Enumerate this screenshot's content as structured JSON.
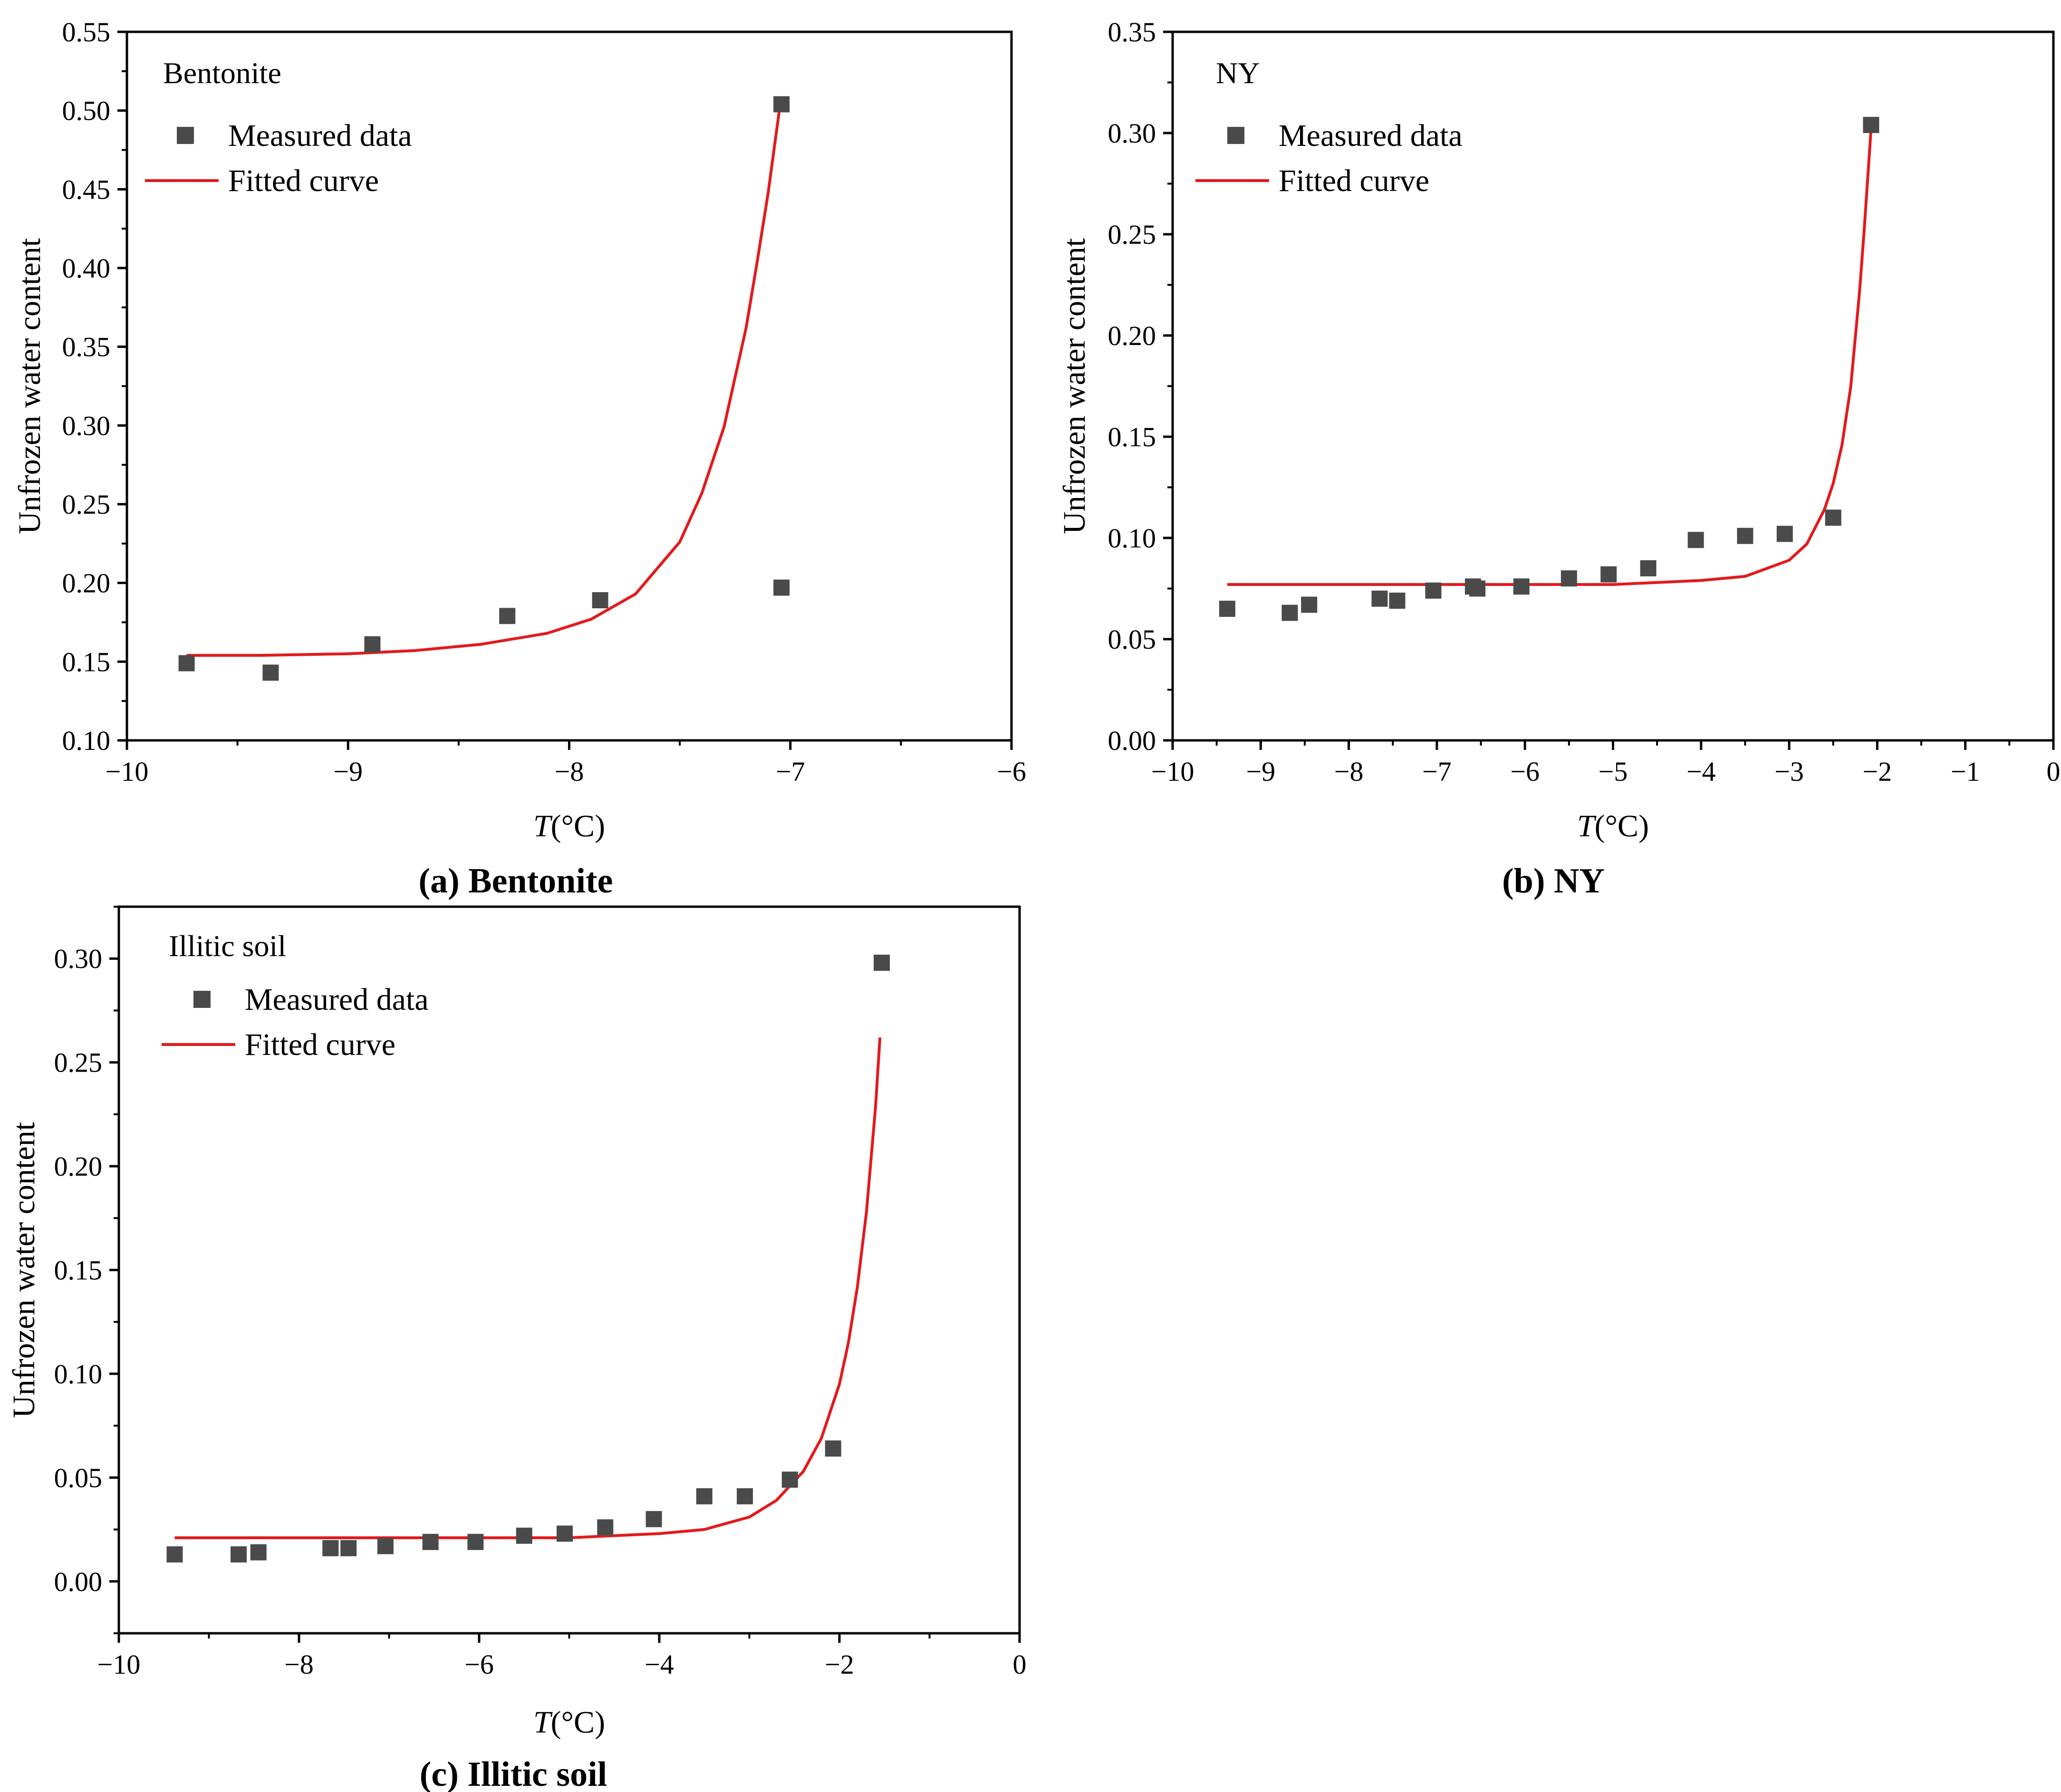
{
  "colors": {
    "marker": "#4a4a4a",
    "curve": "#e31a1c",
    "axis": "#000000"
  },
  "chart_data": [
    {
      "type": "scatter",
      "caption": {
        "letter": "(a) ",
        "name": "Bentonite"
      },
      "sample_label": "Bentonite",
      "legend": {
        "measured": "Measured data",
        "fitted": "Fitted curve"
      },
      "xlabel_var": "T",
      "xlabel_unit": "(°C)",
      "ylabel": "Unfrozen water content",
      "xlim": [
        -10,
        -6
      ],
      "ylim": [
        0.1,
        0.55
      ],
      "xticks": [
        -10,
        -9,
        -8,
        -7,
        -6
      ],
      "xtick_labels": [
        "−10",
        "−9",
        "−8",
        "−7",
        "−6"
      ],
      "yticks": [
        0.1,
        0.15,
        0.2,
        0.25,
        0.3,
        0.35,
        0.4,
        0.45,
        0.5,
        0.55
      ],
      "ytick_labels": [
        "0.10",
        "0.15",
        "0.20",
        "0.25",
        "0.30",
        "0.35",
        "0.40",
        "0.45",
        "0.50",
        "0.55"
      ],
      "measured": {
        "x": [
          -9.73,
          -9.35,
          -8.89,
          -8.28,
          -7.86,
          -7.04,
          -7.04
        ],
        "y": [
          0.149,
          0.143,
          0.161,
          0.179,
          0.189,
          0.197,
          0.504
        ]
      },
      "fitted": {
        "x": [
          -9.73,
          -9.4,
          -9.0,
          -8.7,
          -8.4,
          -8.1,
          -7.9,
          -7.7,
          -7.5,
          -7.4,
          -7.3,
          -7.2,
          -7.15,
          -7.1,
          -7.05
        ],
        "y": [
          0.154,
          0.154,
          0.155,
          0.157,
          0.161,
          0.168,
          0.177,
          0.193,
          0.226,
          0.257,
          0.299,
          0.362,
          0.404,
          0.448,
          0.5
        ]
      }
    },
    {
      "type": "scatter",
      "caption": {
        "letter": "(b) ",
        "name": "NY"
      },
      "sample_label": "NY",
      "legend": {
        "measured": "Measured data",
        "fitted": "Fitted curve"
      },
      "xlabel_var": "T",
      "xlabel_unit": "(°C)",
      "ylabel": "Unfrozen water content",
      "xlim": [
        -10,
        0
      ],
      "ylim": [
        0,
        0.35
      ],
      "xticks": [
        -10,
        -9,
        -8,
        -7,
        -6,
        -5,
        -4,
        -3,
        -2,
        -1,
        0
      ],
      "xtick_labels": [
        "−10",
        "−9",
        "−8",
        "−7",
        "−6",
        "−5",
        "−4",
        "−3",
        "−2",
        "−1",
        "0"
      ],
      "yticks": [
        0,
        0.05,
        0.1,
        0.15,
        0.2,
        0.25,
        0.3,
        0.35
      ],
      "ytick_labels": [
        "0.00",
        "0.05",
        "0.10",
        "0.15",
        "0.20",
        "0.25",
        "0.30",
        "0.35"
      ],
      "measured": {
        "x": [
          -9.38,
          -8.67,
          -8.45,
          -7.65,
          -7.45,
          -7.04,
          -6.59,
          -6.54,
          -6.04,
          -5.5,
          -5.05,
          -4.6,
          -4.06,
          -3.5,
          -3.05,
          -2.5,
          -2.07
        ],
        "y": [
          0.065,
          0.063,
          0.067,
          0.07,
          0.069,
          0.074,
          0.076,
          0.075,
          0.076,
          0.08,
          0.082,
          0.085,
          0.099,
          0.101,
          0.102,
          0.11,
          0.304
        ]
      },
      "fitted": {
        "x": [
          -9.38,
          -8.0,
          -6.0,
          -5.0,
          -4.0,
          -3.5,
          -3.0,
          -2.8,
          -2.6,
          -2.5,
          -2.4,
          -2.3,
          -2.2,
          -2.15,
          -2.1,
          -2.07
        ],
        "y": [
          0.077,
          0.077,
          0.077,
          0.077,
          0.079,
          0.081,
          0.089,
          0.097,
          0.114,
          0.127,
          0.146,
          0.175,
          0.222,
          0.251,
          0.283,
          0.302
        ]
      }
    },
    {
      "type": "scatter",
      "caption": {
        "letter": "(c) ",
        "name": "Illitic soil"
      },
      "sample_label": "Illitic soil",
      "legend": {
        "measured": "Measured data",
        "fitted": "Fitted curve"
      },
      "xlabel_var": "T",
      "xlabel_unit": "(°C)",
      "ylabel": "Unfrozen water content",
      "xlim": [
        -10,
        0
      ],
      "ylim": [
        -0.025,
        0.325
      ],
      "xticks": [
        -10,
        -8,
        -6,
        -4,
        -2,
        0
      ],
      "xtick_labels": [
        "−10",
        "−8",
        "−6",
        "−4",
        "−2",
        "0"
      ],
      "yticks": [
        0,
        0.05,
        0.1,
        0.15,
        0.2,
        0.25,
        0.3
      ],
      "ytick_labels": [
        "0.00",
        "0.05",
        "0.10",
        "0.15",
        "0.20",
        "0.25",
        "0.30"
      ],
      "measured": {
        "x": [
          -9.38,
          -8.67,
          -8.45,
          -7.65,
          -7.45,
          -7.04,
          -6.54,
          -6.04,
          -5.5,
          -5.05,
          -4.6,
          -4.06,
          -3.5,
          -3.05,
          -2.55,
          -2.07,
          -1.53
        ],
        "y": [
          0.013,
          0.013,
          0.014,
          0.016,
          0.016,
          0.017,
          0.019,
          0.019,
          0.022,
          0.023,
          0.026,
          0.03,
          0.041,
          0.041,
          0.049,
          0.064,
          0.298
        ]
      },
      "fitted": {
        "x": [
          -9.38,
          -8.0,
          -6.0,
          -5.0,
          -4.0,
          -3.5,
          -3.0,
          -2.7,
          -2.4,
          -2.2,
          -2.0,
          -1.9,
          -1.8,
          -1.7,
          -1.6,
          -1.55
        ],
        "y": [
          0.021,
          0.021,
          0.021,
          0.021,
          0.023,
          0.025,
          0.031,
          0.039,
          0.053,
          0.069,
          0.095,
          0.115,
          0.142,
          0.178,
          0.228,
          0.262
        ]
      }
    }
  ]
}
